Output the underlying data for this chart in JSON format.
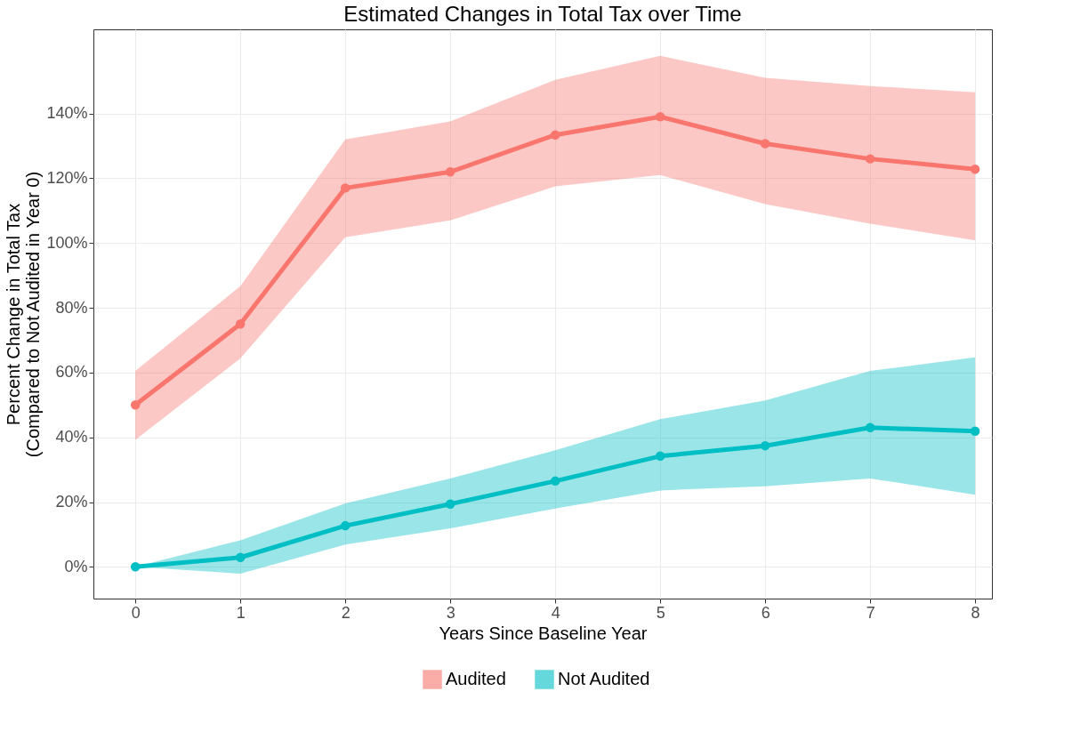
{
  "chart_data": {
    "type": "line",
    "title": "Estimated Changes in Total Tax over Time",
    "xlabel": "Years Since Baseline Year",
    "ylabel": "Percent Change in Total Tax\n(Compared to Not Audited in Year 0)",
    "x": [
      0,
      1,
      2,
      3,
      4,
      5,
      6,
      7,
      8
    ],
    "series": [
      {
        "name": "Audited",
        "color": "#f8766d",
        "values": [
          50,
          75,
          117,
          122,
          133.4,
          139,
          130.7,
          126,
          122.8
        ],
        "lower": [
          39.2,
          64.4,
          101.8,
          107,
          117.5,
          121,
          112,
          106,
          100.8
        ],
        "upper": [
          60.5,
          86.7,
          132,
          137.6,
          150.4,
          157.8,
          151,
          148.5,
          146.6
        ]
      },
      {
        "name": "Not Audited",
        "color": "#00bfc4",
        "values": [
          0,
          2.9,
          12.7,
          19.4,
          26.5,
          34.2,
          37.4,
          43,
          41.9
        ],
        "lower": [
          0,
          -2.1,
          6.9,
          11.9,
          18,
          23.6,
          24.9,
          27.3,
          22.3
        ],
        "upper": [
          0,
          8.2,
          19.6,
          27.3,
          36,
          45.6,
          51.4,
          60.5,
          64.7
        ]
      }
    ],
    "xlim": [
      -0.4,
      8.16
    ],
    "xticks": [
      0,
      1,
      2,
      3,
      4,
      5,
      6,
      7,
      8
    ],
    "ylim": [
      -9.8,
      166
    ],
    "yticks": [
      {
        "value": 0,
        "label": "0%"
      },
      {
        "value": 20,
        "label": "20%"
      },
      {
        "value": 40,
        "label": "40%"
      },
      {
        "value": 60,
        "label": "60%"
      },
      {
        "value": 80,
        "label": "80%"
      },
      {
        "value": 100,
        "label": "100%"
      },
      {
        "value": 120,
        "label": "120%"
      },
      {
        "value": 140,
        "label": "140%"
      }
    ],
    "grid": true,
    "legend": "bottom",
    "marker": "circle",
    "line_style": "solid"
  }
}
